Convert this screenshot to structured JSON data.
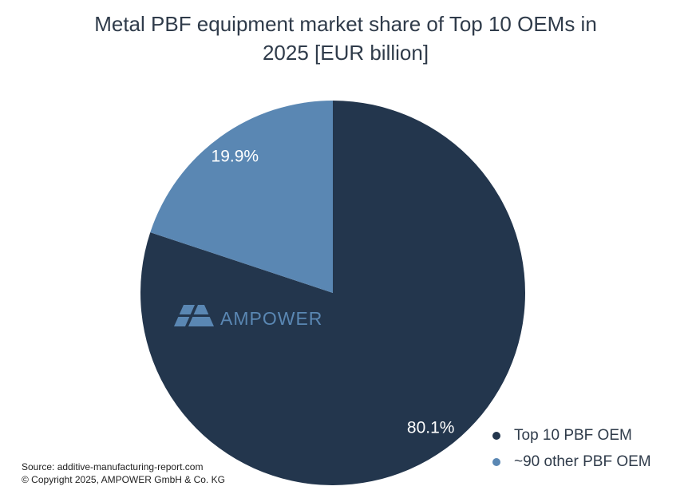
{
  "chart_data": {
    "type": "pie",
    "title": "Metal PBF equipment market share of Top 10 OEMs in 2025 [EUR billion]",
    "categories": [
      "Top 10 PBF OEM",
      "~90 other PBF OEM"
    ],
    "values": [
      80.1,
      19.9
    ],
    "value_labels": [
      "80.1%",
      "19.9%"
    ],
    "colors": [
      "#23364d",
      "#5a87b3"
    ],
    "watermark": "AMPOWER",
    "source": "Source: additive-manufacturing-report.com",
    "copyright": "© Copyright 2025, AMPOWER GmbH & Co. KG"
  }
}
